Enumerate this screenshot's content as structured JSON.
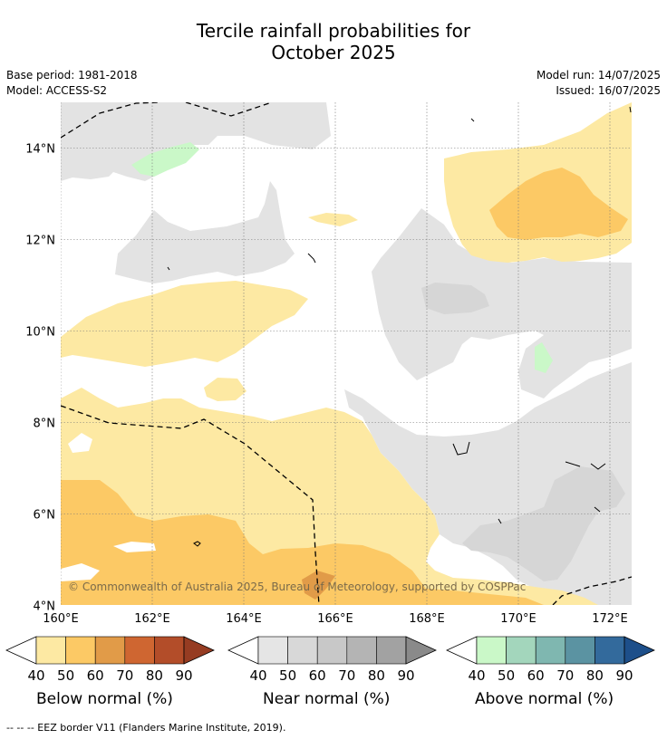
{
  "title_line1": "Tercile rainfall probabilities for",
  "title_line2": "October 2025",
  "base_period": "Base period: 1981-2018",
  "model": "Model: ACCESS-S2",
  "model_run": "Model run: 14/07/2025",
  "issued": "Issued: 16/07/2025",
  "credit": "© Commonwealth of Australia 2025, Bureau of Meteorology, supported by COSPPac",
  "footer": "--  --  -- EEZ border V11 (Flanders Marine Institute, 2019).",
  "map": {
    "lon_labels": [
      "160°E",
      "162°E",
      "164°E",
      "166°E",
      "168°E",
      "170°E",
      "172°E"
    ],
    "lat_labels": [
      "14°N",
      "12°N",
      "10°N",
      "8°N",
      "6°N",
      "4°N"
    ]
  },
  "colorbars": [
    {
      "title": "Below normal (%)",
      "labels": [
        "40",
        "50",
        "60",
        "70",
        "80",
        "90"
      ],
      "colors": [
        "#fde9a3",
        "#fcc965",
        "#e19b48",
        "#cf6631",
        "#b34d29",
        "#963c22"
      ]
    },
    {
      "title": "Near normal (%)",
      "labels": [
        "40",
        "50",
        "60",
        "70",
        "80",
        "90"
      ],
      "colors": [
        "#e5e5e5",
        "#d8d8d8",
        "#c8c8c8",
        "#b4b4b4",
        "#a2a2a2",
        "#8a8a8a"
      ]
    },
    {
      "title": "Above normal (%)",
      "labels": [
        "40",
        "50",
        "60",
        "70",
        "80",
        "90"
      ],
      "colors": [
        "#caf8c8",
        "#a3d6bc",
        "#7fb7b0",
        "#5b93a2",
        "#336a9c",
        "#1d4f8a"
      ]
    }
  ]
}
